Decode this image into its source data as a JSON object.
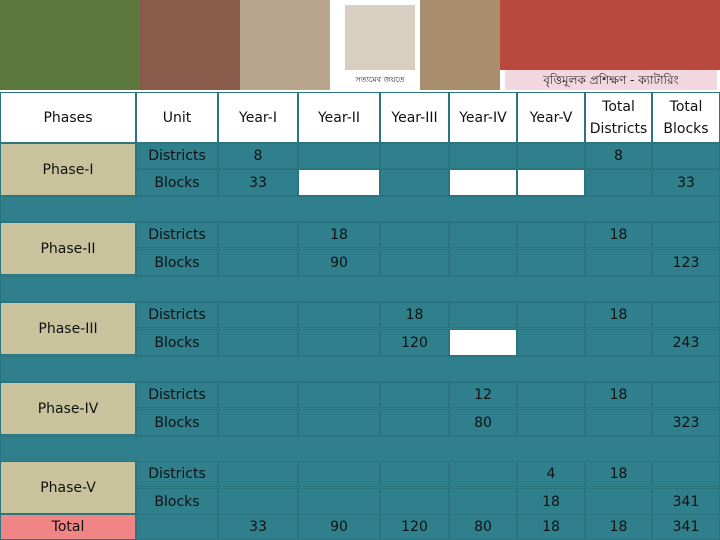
{
  "banner": {
    "motto": "সত্যমেব জয়তে",
    "caption": "বৃত্তিমূলক প্রশিক্ষণ - ক্যাটারিং"
  },
  "table": {
    "header": [
      "Phases",
      "Unit",
      "Year-I",
      "Year-II",
      "Year-III",
      "Year-IV",
      "Year-V",
      "Total Districts",
      "Total Blocks"
    ],
    "rows": [
      [
        "Phase-I",
        "Districts",
        8,
        null,
        null,
        null,
        null,
        8,
        null
      ],
      [
        null,
        "Blocks",
        33,
        null,
        null,
        null,
        null,
        null,
        33
      ],
      [
        "Phase-II",
        "Districts",
        null,
        18,
        null,
        null,
        null,
        18,
        null
      ],
      [
        null,
        "Blocks",
        null,
        90,
        null,
        null,
        null,
        null,
        123
      ],
      [
        "Phase-III",
        "Districts",
        null,
        null,
        18,
        null,
        null,
        18,
        null
      ],
      [
        null,
        "Blocks",
        null,
        null,
        120,
        null,
        null,
        null,
        243
      ],
      [
        "Phase-IV",
        "Districts",
        null,
        null,
        null,
        12,
        null,
        18,
        null
      ],
      [
        null,
        "Blocks",
        null,
        null,
        null,
        80,
        null,
        null,
        323
      ],
      [
        "Phase-V",
        "Districts",
        null,
        null,
        null,
        null,
        4,
        18,
        null
      ],
      [
        null,
        "Blocks",
        null,
        null,
        null,
        null,
        18,
        null,
        341
      ]
    ],
    "total": [
      "Total",
      null,
      33,
      90,
      120,
      80,
      18,
      18,
      341
    ]
  }
}
